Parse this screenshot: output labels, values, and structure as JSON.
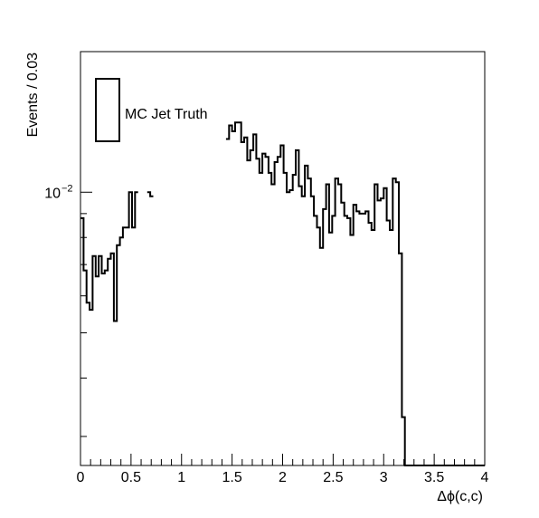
{
  "chart_data": {
    "type": "histogram",
    "title": "",
    "xlabel": "Δϕ(c,c)",
    "ylabel": "Events / 0.03",
    "xlim": [
      0,
      4
    ],
    "ylim": [
      0.0026,
      0.02
    ],
    "yscale": "log",
    "grid": false,
    "x_tick_labels": [
      "0",
      "0.5",
      "1",
      "1.5",
      "2",
      "2.5",
      "3",
      "3.5",
      "4"
    ],
    "y_tick_label": {
      "base": "10",
      "exponent": "−2"
    },
    "legend": {
      "position": "top-left",
      "entries": [
        "MC Jet Truth"
      ]
    },
    "bin_width": 0.03,
    "series": [
      {
        "name": "MC Jet Truth",
        "bins": [
          [
            0.0,
            0.0088
          ],
          [
            0.03,
            0.0068
          ],
          [
            0.06,
            0.0058
          ],
          [
            0.09,
            0.0056
          ],
          [
            0.12,
            0.0073
          ],
          [
            0.15,
            0.0066
          ],
          [
            0.18,
            0.0073
          ],
          [
            0.21,
            0.0067
          ],
          [
            0.24,
            0.0068
          ],
          [
            0.27,
            0.0072
          ],
          [
            0.3,
            0.0074
          ],
          [
            0.33,
            0.0053
          ],
          [
            0.36,
            0.0077
          ],
          [
            0.39,
            0.008
          ],
          [
            0.42,
            0.0084
          ],
          [
            0.45,
            0.0084
          ],
          [
            0.48,
            0.01
          ],
          [
            0.51,
            0.0084
          ],
          [
            0.54,
            0.01
          ],
          [
            0.66,
            0.01
          ],
          [
            0.69,
            0.0098
          ],
          [
            1.44,
            0.013
          ],
          [
            1.47,
            0.0139
          ],
          [
            1.5,
            0.0135
          ],
          [
            1.53,
            0.0141
          ],
          [
            1.56,
            0.0141
          ],
          [
            1.59,
            0.0128
          ],
          [
            1.62,
            0.0131
          ],
          [
            1.65,
            0.0117
          ],
          [
            1.68,
            0.0123
          ],
          [
            1.71,
            0.0133
          ],
          [
            1.74,
            0.0118
          ],
          [
            1.77,
            0.011
          ],
          [
            1.8,
            0.0121
          ],
          [
            1.83,
            0.0119
          ],
          [
            1.86,
            0.011
          ],
          [
            1.89,
            0.0104
          ],
          [
            1.92,
            0.0116
          ],
          [
            1.95,
            0.0119
          ],
          [
            1.98,
            0.0126
          ],
          [
            2.01,
            0.011
          ],
          [
            2.04,
            0.01
          ],
          [
            2.07,
            0.0101
          ],
          [
            2.1,
            0.0109
          ],
          [
            2.13,
            0.0123
          ],
          [
            2.16,
            0.0103
          ],
          [
            2.19,
            0.0098
          ],
          [
            2.22,
            0.0114
          ],
          [
            2.25,
            0.0107
          ],
          [
            2.28,
            0.0098
          ],
          [
            2.31,
            0.0089
          ],
          [
            2.34,
            0.0084
          ],
          [
            2.37,
            0.0076
          ],
          [
            2.4,
            0.0092
          ],
          [
            2.43,
            0.0104
          ],
          [
            2.46,
            0.0082
          ],
          [
            2.49,
            0.0089
          ],
          [
            2.52,
            0.0107
          ],
          [
            2.55,
            0.0104
          ],
          [
            2.58,
            0.0095
          ],
          [
            2.61,
            0.0089
          ],
          [
            2.64,
            0.0088
          ],
          [
            2.67,
            0.0081
          ],
          [
            2.7,
            0.0094
          ],
          [
            2.73,
            0.0091
          ],
          [
            2.76,
            0.009
          ],
          [
            2.79,
            0.009
          ],
          [
            2.82,
            0.0091
          ],
          [
            2.85,
            0.0086
          ],
          [
            2.88,
            0.0083
          ],
          [
            2.91,
            0.0104
          ],
          [
            2.94,
            0.0096
          ],
          [
            2.97,
            0.0097
          ],
          [
            3.0,
            0.0102
          ],
          [
            3.03,
            0.0087
          ],
          [
            3.06,
            0.0083
          ],
          [
            3.09,
            0.0107
          ],
          [
            3.12,
            0.0105
          ],
          [
            3.15,
            0.0074
          ],
          [
            3.18,
            0.0033
          ],
          [
            3.21,
            0.0024
          ],
          [
            3.24,
            0.0023
          ],
          [
            3.27,
            0.0023
          ]
        ]
      }
    ]
  }
}
